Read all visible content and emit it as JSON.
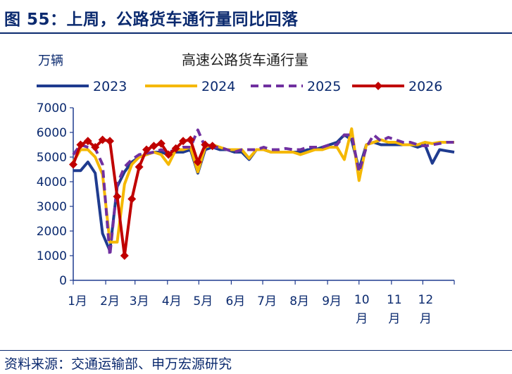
{
  "figure_title": "图 55：上周，公路货车通行量同比回落",
  "source": "资料来源：交通运输部、申万宏源研究",
  "chart_data": {
    "type": "line",
    "title": "高速公路货车通行量",
    "ylabel": "万辆",
    "ylim": [
      0,
      7000
    ],
    "yticks": [
      0,
      1000,
      2000,
      3000,
      4000,
      5000,
      6000,
      7000
    ],
    "x_unit": "week",
    "x_range": [
      1,
      53
    ],
    "xticks": [
      {
        "week": 1,
        "label": "1月"
      },
      {
        "week": 5.43,
        "label": "2月"
      },
      {
        "week": 9.43,
        "label": "3月"
      },
      {
        "week": 13.86,
        "label": "4月"
      },
      {
        "week": 18.14,
        "label": "5月"
      },
      {
        "week": 22.57,
        "label": "6月"
      },
      {
        "week": 26.86,
        "label": "7月"
      },
      {
        "week": 31.29,
        "label": "8月"
      },
      {
        "week": 35.71,
        "label": "9月"
      },
      {
        "week": 40,
        "label": "10月"
      },
      {
        "week": 44.43,
        "label": "11月"
      },
      {
        "week": 48.71,
        "label": "12月"
      }
    ],
    "legend_position": "top",
    "grid": false,
    "series": [
      {
        "name": "2023",
        "color": "#1f3b8f",
        "style": "solid",
        "marker": "none",
        "x": [
          1,
          2,
          3,
          4,
          5,
          6,
          7,
          8,
          9,
          10,
          11,
          12,
          13,
          14,
          15,
          16,
          17,
          18,
          19,
          20,
          21,
          22,
          23,
          24,
          25,
          26,
          27,
          28,
          29,
          30,
          31,
          32,
          33,
          34,
          35,
          36,
          37,
          38,
          39,
          40,
          41,
          42,
          43,
          44,
          45,
          46,
          47,
          48,
          49,
          50,
          51,
          52,
          53
        ],
        "values": [
          4450,
          4450,
          4800,
          4350,
          1900,
          1200,
          3800,
          4400,
          4800,
          5000,
          5100,
          5200,
          5200,
          5100,
          5200,
          5200,
          5300,
          4350,
          5300,
          5400,
          5300,
          5300,
          5200,
          5200,
          4900,
          5300,
          5300,
          5200,
          5200,
          5200,
          5200,
          5200,
          5300,
          5300,
          5400,
          5500,
          5600,
          5900,
          5700,
          4500,
          5500,
          5600,
          5500,
          5500,
          5500,
          5500,
          5500,
          5400,
          5500,
          4750,
          5300,
          5250,
          5200
        ]
      },
      {
        "name": "2024",
        "color": "#f5b800",
        "style": "solid",
        "marker": "none",
        "x": [
          1,
          2,
          3,
          4,
          5,
          6,
          7,
          8,
          9,
          10,
          11,
          12,
          13,
          14,
          15,
          16,
          17,
          18,
          19,
          20,
          21,
          22,
          23,
          24,
          25,
          26,
          27,
          28,
          29,
          30,
          31,
          32,
          33,
          34,
          35,
          36,
          37,
          38,
          39,
          40,
          41,
          42,
          43,
          44,
          45,
          46,
          47,
          48,
          49,
          50,
          51,
          52,
          53
        ],
        "values": [
          4800,
          5300,
          5300,
          5000,
          4300,
          1550,
          1550,
          3900,
          4700,
          5000,
          5100,
          5200,
          5100,
          4700,
          5300,
          5300,
          5400,
          4400,
          5400,
          5500,
          5400,
          5300,
          5300,
          5300,
          4950,
          5300,
          5300,
          5200,
          5200,
          5200,
          5200,
          5100,
          5200,
          5300,
          5300,
          5400,
          5400,
          4900,
          6150,
          4050,
          5500,
          5600,
          5700,
          5600,
          5600,
          5500,
          5500,
          5500,
          5600,
          5550,
          5600,
          5600,
          5600
        ]
      },
      {
        "name": "2025",
        "color": "#7030a0",
        "style": "dashed",
        "marker": "none",
        "x": [
          1,
          2,
          3,
          4,
          5,
          6,
          7,
          8,
          9,
          10,
          11,
          12,
          13,
          14,
          15,
          16,
          17,
          18,
          19,
          20,
          21,
          22,
          23,
          24,
          25,
          26,
          27,
          28,
          29,
          30,
          31,
          32,
          33,
          34,
          35,
          36,
          37,
          38,
          39,
          40,
          41,
          42,
          43,
          44,
          45,
          46,
          47,
          48,
          49,
          50,
          51,
          52,
          53
        ],
        "values": [
          5100,
          5500,
          5400,
          5350,
          4700,
          1000,
          3900,
          4600,
          4900,
          5100,
          5150,
          5200,
          5300,
          5200,
          5300,
          5400,
          5400,
          6100,
          5400,
          5400,
          5400,
          5300,
          5200,
          5300,
          5300,
          5300,
          5400,
          5300,
          5300,
          5350,
          5300,
          5300,
          5400,
          5400,
          5400,
          5500,
          5500,
          5900,
          5900,
          4400,
          5400,
          5900,
          5650,
          5800,
          5700,
          5600,
          5600,
          5500,
          5450,
          5500,
          5550,
          5600,
          5600
        ]
      },
      {
        "name": "2026",
        "color": "#c00000",
        "style": "solid",
        "marker": "diamond",
        "x": [
          1,
          2,
          3,
          4,
          5,
          6,
          7,
          8,
          9,
          10,
          11,
          12,
          13,
          14,
          15,
          16,
          17,
          18,
          19,
          20
        ],
        "values": [
          4700,
          5500,
          5650,
          5400,
          5700,
          5650,
          3400,
          1000,
          3300,
          4600,
          5300,
          5450,
          5550,
          5100,
          5350,
          5650,
          5700,
          4800,
          5500,
          5450
        ]
      }
    ]
  }
}
